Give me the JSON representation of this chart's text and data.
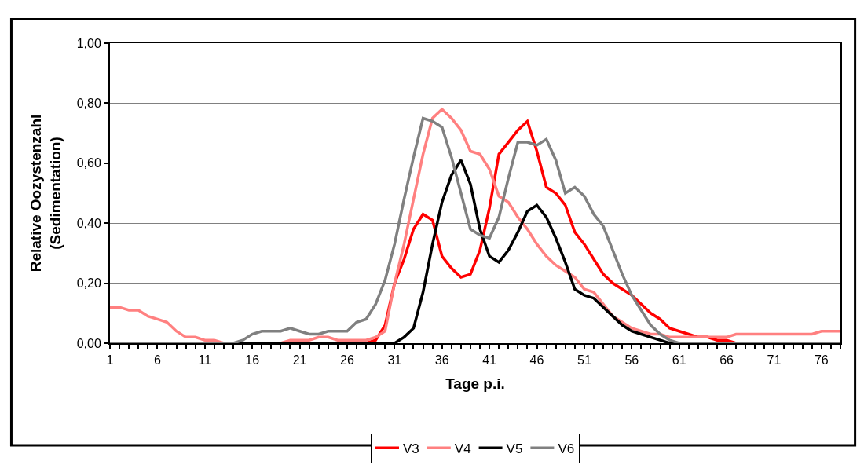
{
  "chart_data": {
    "type": "line",
    "xlabel": "Tage p.i.",
    "ylabel": "Relative Oozystenzahl\n(Sedimentation)",
    "x": [
      1,
      2,
      3,
      4,
      5,
      6,
      7,
      8,
      9,
      10,
      11,
      12,
      13,
      14,
      15,
      16,
      17,
      18,
      19,
      20,
      21,
      22,
      23,
      24,
      25,
      26,
      27,
      28,
      29,
      30,
      31,
      32,
      33,
      34,
      35,
      36,
      37,
      38,
      39,
      40,
      41,
      42,
      43,
      44,
      45,
      46,
      47,
      48,
      49,
      50,
      51,
      52,
      53,
      54,
      55,
      56,
      57,
      58,
      59,
      60,
      61,
      62,
      63,
      64,
      65,
      66,
      67,
      68,
      69,
      70,
      71,
      72,
      73,
      74,
      75,
      76,
      77,
      78
    ],
    "series": [
      {
        "name": "V3",
        "color": "#ff0000",
        "line_style": "solid",
        "values": [
          null,
          null,
          null,
          null,
          null,
          null,
          null,
          null,
          null,
          0,
          0,
          0,
          0,
          0,
          0,
          0,
          0,
          0,
          0,
          0,
          0,
          0,
          0,
          0,
          0,
          0,
          0,
          0,
          0.01,
          0.06,
          0.2,
          0.28,
          0.38,
          0.43,
          0.41,
          0.29,
          0.25,
          0.22,
          0.23,
          0.31,
          0.45,
          0.63,
          0.67,
          0.71,
          0.74,
          0.64,
          0.52,
          0.5,
          0.46,
          0.37,
          0.33,
          0.28,
          0.23,
          0.2,
          0.18,
          0.16,
          0.13,
          0.1,
          0.08,
          0.05,
          0.04,
          0.03,
          0.02,
          0.02,
          0.01,
          0.01,
          0,
          0,
          null,
          null,
          null,
          null,
          null,
          null,
          null,
          null,
          null,
          null
        ]
      },
      {
        "name": "V4",
        "color": "#ff8080",
        "line_style": "solid",
        "values": [
          0.12,
          0.12,
          0.11,
          0.11,
          0.09,
          0.08,
          0.07,
          0.04,
          0.02,
          0.02,
          0.01,
          0.01,
          0,
          0,
          0,
          0,
          0,
          0,
          0,
          0.01,
          0.01,
          0.01,
          0.02,
          0.02,
          0.01,
          0.01,
          0.01,
          0.01,
          0.02,
          0.04,
          0.2,
          0.33,
          0.48,
          0.63,
          0.75,
          0.78,
          0.75,
          0.71,
          0.64,
          0.63,
          0.58,
          0.49,
          0.47,
          0.42,
          0.38,
          0.33,
          0.29,
          0.26,
          0.24,
          0.22,
          0.18,
          0.17,
          0.13,
          0.09,
          0.07,
          0.05,
          0.04,
          0.03,
          0.03,
          0.02,
          0.02,
          0.02,
          0.02,
          0.02,
          0.02,
          0.02,
          0.03,
          0.03,
          0.03,
          0.03,
          0.03,
          0.03,
          0.03,
          0.03,
          0.03,
          0.04,
          0.04,
          0.04
        ]
      },
      {
        "name": "V5",
        "color": "#000000",
        "line_style": "solid",
        "values": [
          0,
          0,
          0,
          0,
          0,
          0,
          0,
          0,
          0,
          0,
          0,
          0,
          0,
          0,
          0,
          0,
          0,
          0,
          0,
          0,
          0,
          0,
          0,
          0,
          0,
          0,
          0,
          0,
          0,
          0,
          0,
          0.02,
          0.05,
          0.17,
          0.33,
          0.47,
          0.56,
          0.61,
          0.53,
          0.38,
          0.29,
          0.27,
          0.31,
          0.37,
          0.44,
          0.46,
          0.42,
          0.35,
          0.27,
          0.18,
          0.16,
          0.15,
          0.12,
          0.09,
          0.06,
          0.04,
          0.03,
          0.02,
          0.01,
          0,
          0,
          0,
          0,
          0,
          0,
          0,
          0,
          0,
          0,
          0,
          0,
          0,
          0,
          0,
          0,
          0,
          0,
          0
        ]
      },
      {
        "name": "V6",
        "color": "#808080",
        "line_style": "solid",
        "values": [
          0,
          0,
          0,
          0,
          0,
          0,
          0,
          0,
          0,
          0,
          0,
          0,
          0,
          0,
          0.01,
          0.03,
          0.04,
          0.04,
          0.04,
          0.05,
          0.04,
          0.03,
          0.03,
          0.04,
          0.04,
          0.04,
          0.07,
          0.08,
          0.13,
          0.21,
          0.33,
          0.48,
          0.62,
          0.75,
          0.74,
          0.72,
          0.62,
          0.5,
          0.38,
          0.36,
          0.35,
          0.42,
          0.55,
          0.67,
          0.67,
          0.66,
          0.68,
          0.61,
          0.5,
          0.52,
          0.49,
          0.43,
          0.39,
          0.31,
          0.23,
          0.16,
          0.11,
          0.06,
          0.03,
          0.01,
          0,
          0,
          0,
          0,
          0,
          0,
          0,
          0,
          0,
          0,
          0,
          0,
          0,
          0,
          0,
          0,
          0,
          0
        ]
      }
    ],
    "xlim": [
      1,
      78
    ],
    "xticks": [
      1,
      {
        "value": 2,
        "label": null
      },
      {
        "value": 3,
        "label": null
      },
      {
        "value": 4,
        "label": null
      },
      {
        "value": 5,
        "label": null
      },
      6,
      {
        "value": 7,
        "label": null
      },
      {
        "value": 8,
        "label": null
      },
      {
        "value": 9,
        "label": null
      },
      {
        "value": 10,
        "label": null
      },
      11,
      {
        "value": 12,
        "label": null
      },
      {
        "value": 13,
        "label": null
      },
      {
        "value": 14,
        "label": null
      },
      {
        "value": 15,
        "label": null
      },
      16,
      {
        "value": 17,
        "label": null
      },
      {
        "value": 18,
        "label": null
      },
      {
        "value": 19,
        "label": null
      },
      {
        "value": 20,
        "label": null
      },
      21,
      {
        "value": 22,
        "label": null
      },
      {
        "value": 23,
        "label": null
      },
      {
        "value": 24,
        "label": null
      },
      {
        "value": 25,
        "label": null
      },
      26,
      {
        "value": 27,
        "label": null
      },
      {
        "value": 28,
        "label": null
      },
      {
        "value": 29,
        "label": null
      },
      {
        "value": 30,
        "label": null
      },
      31,
      {
        "value": 32,
        "label": null
      },
      {
        "value": 33,
        "label": null
      },
      {
        "value": 34,
        "label": null
      },
      {
        "value": 35,
        "label": null
      },
      36,
      {
        "value": 37,
        "label": null
      },
      {
        "value": 38,
        "label": null
      },
      {
        "value": 39,
        "label": null
      },
      {
        "value": 40,
        "label": null
      },
      41,
      {
        "value": 42,
        "label": null
      },
      {
        "value": 43,
        "label": null
      },
      {
        "value": 44,
        "label": null
      },
      {
        "value": 45,
        "label": null
      },
      46,
      {
        "value": 47,
        "label": null
      },
      {
        "value": 48,
        "label": null
      },
      {
        "value": 49,
        "label": null
      },
      {
        "value": 50,
        "label": null
      },
      51,
      {
        "value": 52,
        "label": null
      },
      {
        "value": 53,
        "label": null
      },
      {
        "value": 54,
        "label": null
      },
      {
        "value": 55,
        "label": null
      },
      56,
      {
        "value": 57,
        "label": null
      },
      {
        "value": 58,
        "label": null
      },
      {
        "value": 59,
        "label": null
      },
      {
        "value": 60,
        "label": null
      },
      61,
      {
        "value": 62,
        "label": null
      },
      {
        "value": 63,
        "label": null
      },
      {
        "value": 64,
        "label": null
      },
      {
        "value": 65,
        "label": null
      },
      66,
      {
        "value": 67,
        "label": null
      },
      {
        "value": 68,
        "label": null
      },
      {
        "value": 69,
        "label": null
      },
      {
        "value": 70,
        "label": null
      },
      71,
      {
        "value": 72,
        "label": null
      },
      {
        "value": 73,
        "label": null
      },
      {
        "value": 74,
        "label": null
      },
      {
        "value": 75,
        "label": null
      },
      76,
      {
        "value": 77,
        "label": null
      },
      {
        "value": 78,
        "label": null
      }
    ],
    "ylim": [
      0,
      1
    ],
    "yticks": [
      {
        "value": 0,
        "label": "0,00"
      },
      {
        "value": 0.2,
        "label": "0,20"
      },
      {
        "value": 0.4,
        "label": "0,40"
      },
      {
        "value": 0.6,
        "label": "0,60"
      },
      {
        "value": 0.8,
        "label": "0,80"
      },
      {
        "value": 1,
        "label": "1,00"
      }
    ],
    "grid": "y",
    "legend": "bottom",
    "marker": "none"
  }
}
